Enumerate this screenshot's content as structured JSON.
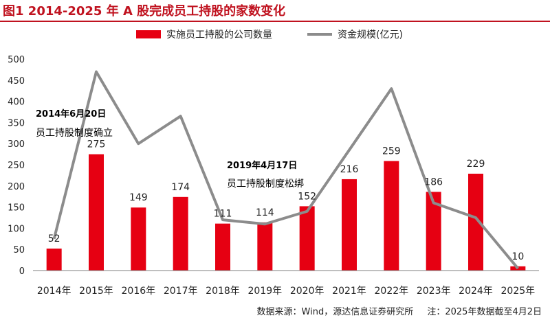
{
  "title": "图1  2014-2025 年 A 股完成员工持股的家数变化",
  "legend": {
    "bar_label": "实施员工持股的公司数量",
    "line_label": "资金规模(亿元)"
  },
  "annotations": [
    {
      "line1": "2014年6月20日",
      "line2": "员工持股制度确立"
    },
    {
      "line1": "2019年4月17日",
      "line2": "员工持股制度松绑"
    }
  ],
  "source": {
    "text": "数据来源：Wind，源达信息证券研究所",
    "note": "注：2025年数据截至4月2日"
  },
  "colors": {
    "title": "#c0121f",
    "bar": "#e60012",
    "line": "#8c8c8c"
  },
  "chart_data": {
    "type": "bar",
    "categories": [
      "2014年",
      "2015年",
      "2016年",
      "2017年",
      "2018年",
      "2019年",
      "2020年",
      "2021年",
      "2022年",
      "2023年",
      "2024年",
      "2025年"
    ],
    "ylim": [
      0,
      500
    ],
    "yticks": [
      0,
      50,
      100,
      150,
      200,
      250,
      300,
      350,
      400,
      450,
      500
    ],
    "series": [
      {
        "name": "实施员工持股的公司数量",
        "type": "bar",
        "values": [
          52,
          275,
          149,
          174,
          111,
          114,
          152,
          216,
          259,
          186,
          229,
          10
        ]
      },
      {
        "name": "资金规模(亿元)",
        "type": "line",
        "values": [
          75,
          470,
          300,
          365,
          120,
          110,
          140,
          285,
          430,
          160,
          125,
          5
        ]
      }
    ],
    "grid": false,
    "legend_position": "top"
  }
}
